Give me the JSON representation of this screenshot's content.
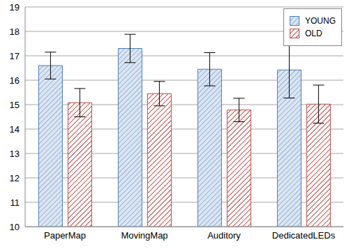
{
  "chart_data": {
    "type": "bar",
    "categories": [
      "PaperMap",
      "MovingMap",
      "Auditory",
      "DedicatedLEDs"
    ],
    "series": [
      {
        "name": "YOUNG",
        "color": "#4a7ebb",
        "values": [
          16.6,
          17.3,
          16.45,
          16.42
        ],
        "errors": [
          0.55,
          0.58,
          0.68,
          1.15
        ]
      },
      {
        "name": "OLD",
        "color": "#be4b48",
        "values": [
          15.08,
          15.45,
          14.78,
          15.02
        ],
        "errors": [
          0.58,
          0.5,
          0.48,
          0.78
        ]
      }
    ],
    "ylim": [
      10,
      19
    ],
    "yticks": [
      10,
      11,
      12,
      13,
      14,
      15,
      16,
      17,
      18,
      19
    ],
    "grid": true,
    "legend": "upper right"
  }
}
